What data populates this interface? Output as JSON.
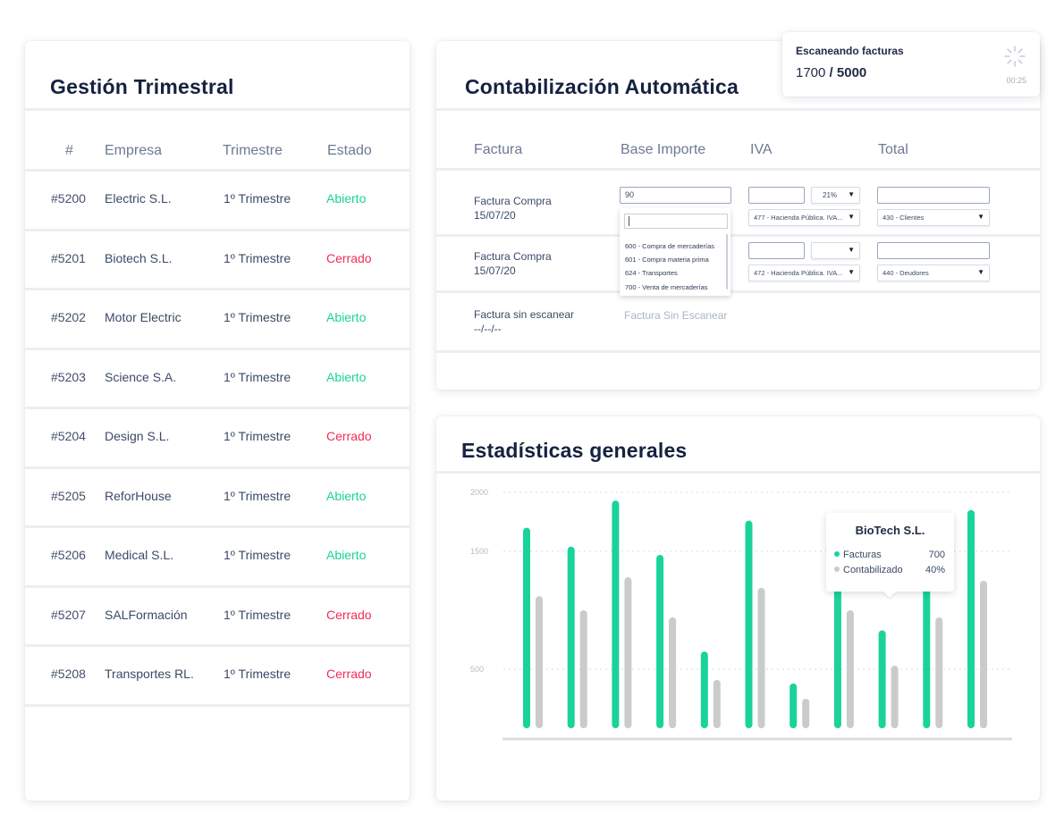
{
  "gestion": {
    "title": "Gestión Trimestral",
    "headers": [
      "#",
      "Empresa",
      "Trimestre",
      "Estado"
    ],
    "rows": [
      {
        "id": "#5200",
        "empresa": "Electric S.L.",
        "trimestre": "1º Trimestre",
        "estado": "Abierto",
        "status": "open"
      },
      {
        "id": "#5201",
        "empresa": "Biotech S.L.",
        "trimestre": "1º Trimestre",
        "estado": "Cerrado",
        "status": "closed"
      },
      {
        "id": "#5202",
        "empresa": "Motor Electric",
        "trimestre": "1º Trimestre",
        "estado": "Abierto",
        "status": "open"
      },
      {
        "id": "#5203",
        "empresa": "Science S.A.",
        "trimestre": "1º Trimestre",
        "estado": "Abierto",
        "status": "open"
      },
      {
        "id": "#5204",
        "empresa": "Design S.L.",
        "trimestre": "1º Trimestre",
        "estado": "Cerrado",
        "status": "closed"
      },
      {
        "id": "#5205",
        "empresa": "ReforHouse",
        "trimestre": "1º Trimestre",
        "estado": "Abierto",
        "status": "open"
      },
      {
        "id": "#5206",
        "empresa": "Medical S.L.",
        "trimestre": "1º Trimestre",
        "estado": "Abierto",
        "status": "open"
      },
      {
        "id": "#5207",
        "empresa": "SALFormación",
        "trimestre": "1º Trimestre",
        "estado": "Cerrado",
        "status": "closed"
      },
      {
        "id": "#5208",
        "empresa": "Transportes RL.",
        "trimestre": "1º Trimestre",
        "estado": "Cerrado",
        "status": "closed"
      }
    ]
  },
  "contab": {
    "title": "Contabilización Automática",
    "headers": [
      "Factura",
      "Base Importe",
      "IVA",
      "Total"
    ],
    "row1": {
      "label": "Factura Compra",
      "date": "15/07/20",
      "base": "90",
      "iva_pct": "21%",
      "iva_account": "477 - Hacienda Pública. IVA...",
      "total_account": "430 - Clientes"
    },
    "row2": {
      "label": "Factura Compra",
      "date": "15/07/20",
      "iva_account": "472 - Hacienda Pública. IVA...",
      "total_account": "440 - Deudores"
    },
    "row3": {
      "label": "Factura sin escanear",
      "date": "--/--/--",
      "placeholder": "Factura Sin Escanear"
    },
    "dropdown_items": [
      "600 - Compra de mercaderías",
      "601 - Compra materia prima",
      "624 - Transportes",
      "700 - Venta de mercaderías"
    ]
  },
  "scan": {
    "title": "Escaneando facturas",
    "current": "1700",
    "separator": "/",
    "total": "5000",
    "time": "00:25"
  },
  "stats": {
    "title": "Estadísticas generales",
    "tooltip": {
      "title": "BioTech S.L.",
      "rows": [
        {
          "label": "Facturas",
          "value": "700"
        },
        {
          "label": "Contabilizado",
          "value": "40%"
        }
      ]
    }
  },
  "colors": {
    "green": "#19d39a",
    "gray": "#cbcbcb",
    "red": "#ef2d55"
  },
  "chart_data": {
    "type": "bar",
    "yticks": [
      2000,
      1500,
      500
    ],
    "grid": true,
    "series": [
      {
        "name": "Facturas",
        "values": [
          1700,
          1540,
          1930,
          1470,
          650,
          1760,
          380,
          1540,
          830,
          1470,
          1850
        ]
      },
      {
        "name": "Contabilizado",
        "values": [
          1120,
          1000,
          1280,
          940,
          410,
          1190,
          250,
          1000,
          530,
          940,
          1250
        ]
      }
    ]
  }
}
